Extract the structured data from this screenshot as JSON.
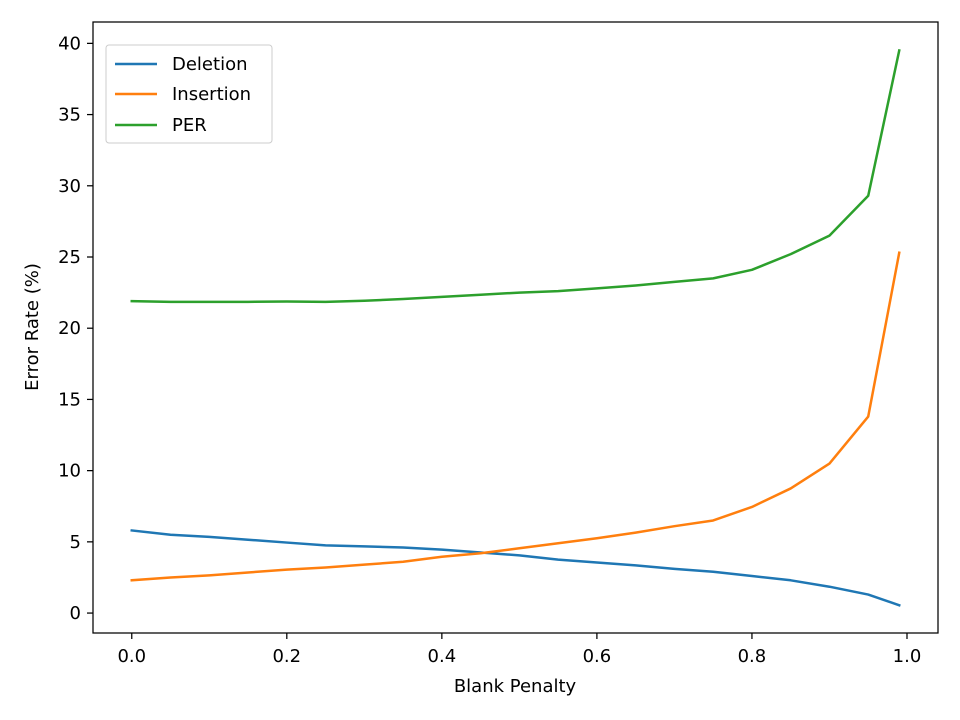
{
  "chart_data": {
    "type": "line",
    "title": "",
    "xlabel": "Blank Penalty",
    "ylabel": "Error Rate (%)",
    "xlim": [
      -0.05,
      1.04
    ],
    "ylim": [
      -1.4,
      41.5
    ],
    "xticks": [
      0.0,
      0.2,
      0.4,
      0.6,
      0.8,
      1.0
    ],
    "xtick_labels": [
      "0.0",
      "0.2",
      "0.4",
      "0.6",
      "0.8",
      "1.0"
    ],
    "yticks": [
      0,
      5,
      10,
      15,
      20,
      25,
      30,
      35,
      40
    ],
    "ytick_labels": [
      "0",
      "5",
      "10",
      "15",
      "20",
      "25",
      "30",
      "35",
      "40"
    ],
    "grid": false,
    "legend": "top-left",
    "x": [
      0.0,
      0.05,
      0.1,
      0.15,
      0.2,
      0.25,
      0.3,
      0.35,
      0.4,
      0.45,
      0.5,
      0.55,
      0.6,
      0.65,
      0.7,
      0.75,
      0.8,
      0.85,
      0.9,
      0.95,
      0.99
    ],
    "series": [
      {
        "name": "Deletion",
        "color": "#1f77b4",
        "values": [
          5.8,
          5.5,
          5.35,
          5.15,
          4.95,
          4.75,
          4.68,
          4.6,
          4.45,
          4.25,
          4.05,
          3.75,
          3.55,
          3.35,
          3.1,
          2.9,
          2.6,
          2.3,
          1.85,
          1.3,
          0.55
        ]
      },
      {
        "name": "Insertion",
        "color": "#ff7f0e",
        "values": [
          2.3,
          2.5,
          2.65,
          2.85,
          3.05,
          3.2,
          3.4,
          3.6,
          3.95,
          4.2,
          4.55,
          4.9,
          5.25,
          5.65,
          6.1,
          6.5,
          7.45,
          8.75,
          10.5,
          13.8,
          25.3
        ]
      },
      {
        "name": "PER",
        "color": "#2ca02c",
        "values": [
          21.9,
          21.85,
          21.85,
          21.85,
          21.88,
          21.85,
          21.93,
          22.05,
          22.2,
          22.35,
          22.5,
          22.6,
          22.8,
          23.0,
          23.25,
          23.5,
          24.1,
          25.2,
          26.5,
          29.3,
          39.5
        ]
      }
    ]
  }
}
